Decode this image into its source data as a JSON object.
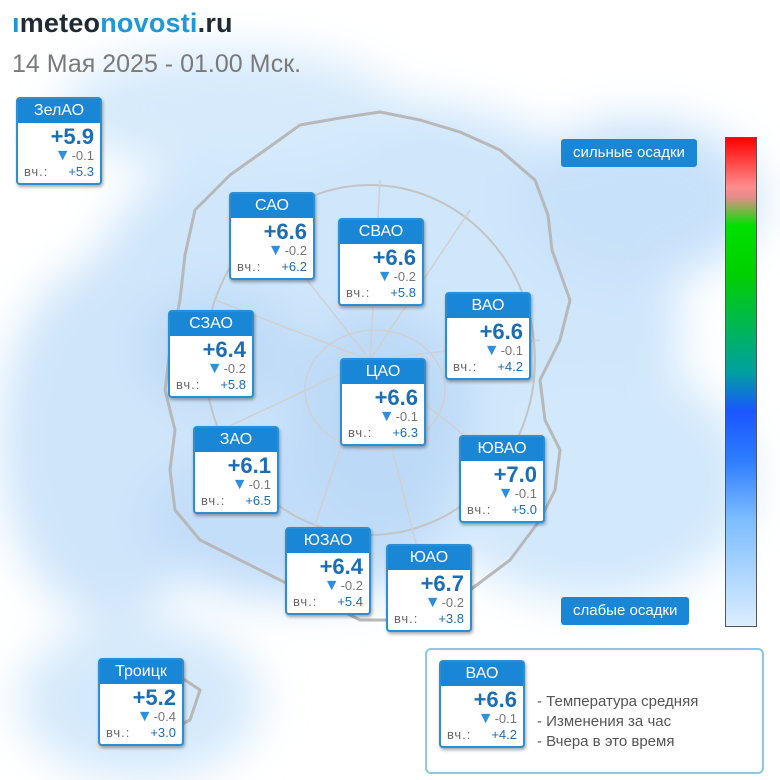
{
  "header": {
    "logo_prefix": "ı",
    "logo_part1": "meteo",
    "logo_part2": "novosti",
    "logo_part3": ".ru",
    "date": "14 Мая 2025 - 01.00 Мск."
  },
  "districts": [
    {
      "id": "zelao",
      "name": "ЗелАО",
      "temp": "+5.9",
      "change": "-0.1",
      "yday_label": "вч.:",
      "yday": "+5.3"
    },
    {
      "id": "sao",
      "name": "САО",
      "temp": "+6.6",
      "change": "-0.2",
      "yday_label": "вч.:",
      "yday": "+6.2"
    },
    {
      "id": "svao",
      "name": "СВАО",
      "temp": "+6.6",
      "change": "-0.2",
      "yday_label": "вч.:",
      "yday": "+5.8"
    },
    {
      "id": "vao",
      "name": "ВАО",
      "temp": "+6.6",
      "change": "-0.1",
      "yday_label": "вч.:",
      "yday": "+4.2"
    },
    {
      "id": "szao",
      "name": "СЗАО",
      "temp": "+6.4",
      "change": "-0.2",
      "yday_label": "вч.:",
      "yday": "+5.8"
    },
    {
      "id": "cao",
      "name": "ЦАО",
      "temp": "+6.6",
      "change": "-0.1",
      "yday_label": "вч.:",
      "yday": "+6.3"
    },
    {
      "id": "zao",
      "name": "ЗАО",
      "temp": "+6.1",
      "change": "-0.1",
      "yday_label": "вч.:",
      "yday": "+6.5"
    },
    {
      "id": "yuvao",
      "name": "ЮВАО",
      "temp": "+7.0",
      "change": "-0.1",
      "yday_label": "вч.:",
      "yday": "+5.0"
    },
    {
      "id": "yuzao",
      "name": "ЮЗАО",
      "temp": "+6.4",
      "change": "-0.2",
      "yday_label": "вч.:",
      "yday": "+5.4"
    },
    {
      "id": "yuao",
      "name": "ЮАО",
      "temp": "+6.7",
      "change": "-0.2",
      "yday_label": "вч.:",
      "yday": "+3.8"
    },
    {
      "id": "troitsk",
      "name": "Троицк",
      "temp": "+5.2",
      "change": "-0.4",
      "yday_label": "вч.:",
      "yday": "+3.0"
    }
  ],
  "scale": {
    "top_label": "сильные осадки",
    "bottom_label": "слабые осадки"
  },
  "legend": {
    "sample": {
      "name": "ВАО",
      "temp": "+6.6",
      "change": "-0.1",
      "yday_label": "вч.:",
      "yday": "+4.2"
    },
    "lines": [
      "- Температура средняя",
      "- Изменения за час",
      "- Вчера в это время"
    ]
  },
  "colors": {
    "accent": "#1a86d6",
    "temp_text": "#1b6db4",
    "precip_light": "#dbeeff",
    "precip_heavy": "#ff0000"
  },
  "icons": {
    "change_indicator": "down-triangle-icon"
  }
}
